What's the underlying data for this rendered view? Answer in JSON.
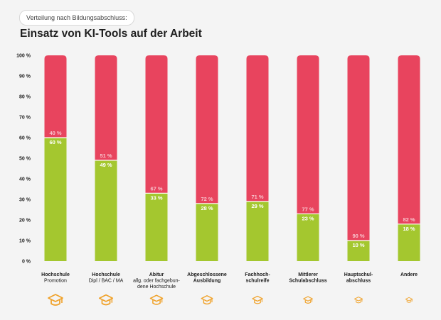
{
  "header": {
    "subtitle": "Verteilung nach Bildungsabschluss:",
    "title": "Einsatz von KI-Tools auf der Arbeit"
  },
  "colors": {
    "green": "#a4c72f",
    "red": "#e8445e",
    "icon": "#f0a22a",
    "background": "#f4f4f4"
  },
  "chart_data": {
    "type": "bar",
    "stacked": true,
    "ylim": [
      0,
      100
    ],
    "yticks": [
      "0 %",
      "10 %",
      "20 %",
      "30 %",
      "40 %",
      "50 %",
      "60 %",
      "70 %",
      "80 %",
      "90 %",
      "100 %"
    ],
    "categories": [
      {
        "main": [
          "Hochschule"
        ],
        "sub": [
          "Promotion"
        ]
      },
      {
        "main": [
          "Hochschule"
        ],
        "sub": [
          "Dipl / BAC / MA"
        ]
      },
      {
        "main": [
          "Abitur"
        ],
        "sub": [
          "allg. oder fachgebun-",
          "dene Hochschule"
        ]
      },
      {
        "main": [
          "Abgeschlossene",
          "Ausbildung"
        ],
        "sub": []
      },
      {
        "main": [
          "Fachhoch-",
          "schulreife"
        ],
        "sub": []
      },
      {
        "main": [
          "Mittlerer",
          "Schulabschluss"
        ],
        "sub": []
      },
      {
        "main": [
          "Hauptschul-",
          "abschluss"
        ],
        "sub": []
      },
      {
        "main": [
          "Andere"
        ],
        "sub": []
      }
    ],
    "series": [
      {
        "values": [
          60,
          49,
          33,
          28,
          29,
          23,
          10,
          18
        ],
        "labels": [
          "60 %",
          "49 %",
          "33 %",
          "28 %",
          "29 %",
          "23 %",
          "10 %",
          "18 %"
        ]
      },
      {
        "values": [
          40,
          51,
          67,
          72,
          71,
          77,
          90,
          82
        ],
        "labels": [
          "40 %",
          "51 %",
          "67 %",
          "72 %",
          "71 %",
          "77 %",
          "90 %",
          "82 %"
        ]
      }
    ],
    "icons": [
      "graduation-cap-icon",
      "graduation-cap-icon",
      "graduation-cap-icon",
      "graduation-cap-icon",
      "graduation-cap-icon",
      "graduation-cap-icon",
      "graduation-cap-icon",
      "graduation-cap-icon"
    ]
  }
}
